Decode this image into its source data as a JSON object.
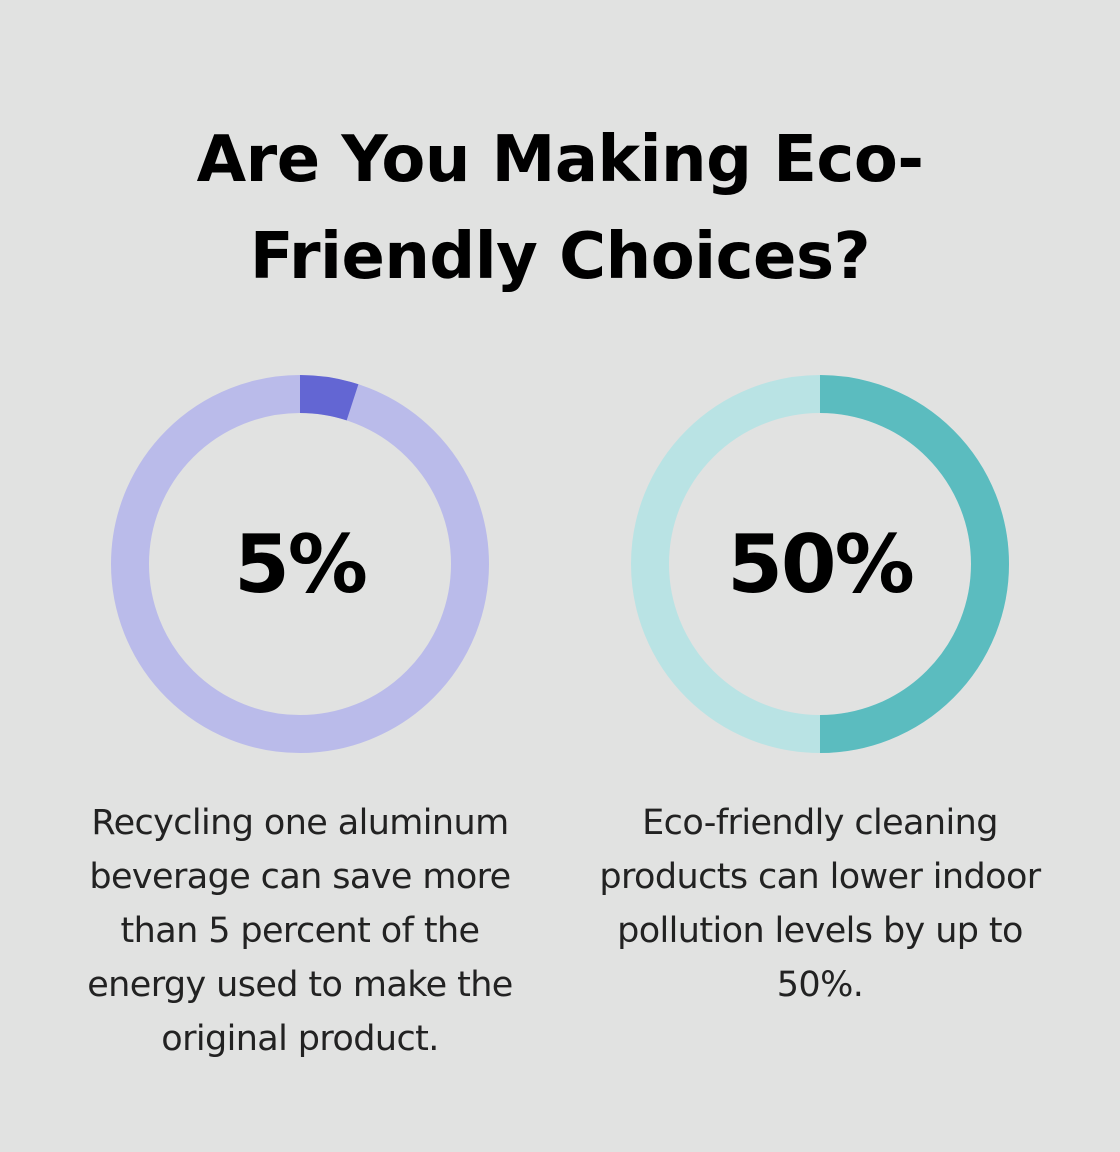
{
  "title": "Are You Making Eco-Friendly Choices?",
  "chart_data": [
    {
      "type": "pie",
      "value_label": "5%",
      "values": [
        5,
        95
      ],
      "track_color": "#babbea",
      "fill_color": "#6366d3",
      "caption": "Recycling one aluminum beverage can save more than 5 percent of the energy used to make the original product."
    },
    {
      "type": "pie",
      "value_label": "50%",
      "values": [
        50,
        50
      ],
      "track_color": "#b9e3e4",
      "fill_color": "#5bbcbf",
      "caption": "Eco-friendly cleaning products can lower indoor pollution levels by up to 50%."
    }
  ]
}
